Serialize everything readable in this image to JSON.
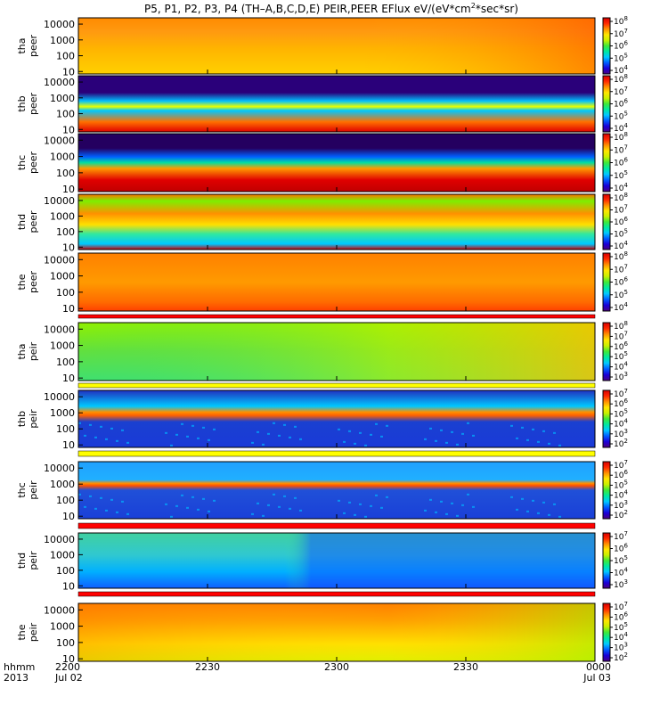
{
  "chart_data": {
    "type": "heatmap",
    "title": "P5, P1, P2, P3, P4 (TH-A,B,C,D,E) PEIR,PEER EFlux eV/(eV*cm2*sec*sr)",
    "title_main": "P5, P1, P2, P3, P4 (TH–A,B,C,D,E) PEIR,PEER EFlux eV/(eV*cm",
    "title_sup": "2",
    "title_end": "*sec*sr)",
    "x_axis": {
      "row_labels": [
        "hhmm",
        "2013"
      ],
      "ticks": [
        {
          "value": "2200",
          "sub": "Jul 02"
        },
        {
          "value": "2230",
          "sub": ""
        },
        {
          "value": "2300",
          "sub": ""
        },
        {
          "value": "2330",
          "sub": ""
        },
        {
          "value": "0000",
          "sub": "Jul 03"
        }
      ],
      "range": [
        "2013-07-02 22:00",
        "2013-07-03 00:00"
      ]
    },
    "y_axis": {
      "scale": "log",
      "unit": "eV"
    },
    "panels": [
      {
        "id": "tha-peer",
        "label_top": "tha",
        "label_bottom": "peer",
        "y_ticks": [
          "10000",
          "1000",
          "100",
          "10"
        ],
        "cb_ticks": [
          "10",
          "10",
          "10",
          "10",
          "10"
        ],
        "cb_exps": [
          "8",
          "7",
          "6",
          "5",
          "4"
        ],
        "cb_range_exp": [
          4,
          8
        ]
      },
      {
        "id": "thb-peer",
        "label_top": "thb",
        "label_bottom": "peer",
        "y_ticks": [
          "10000",
          "1000",
          "100",
          "10"
        ],
        "cb_ticks": [
          "10",
          "10",
          "10",
          "10",
          "10"
        ],
        "cb_exps": [
          "8",
          "7",
          "6",
          "5",
          "4"
        ],
        "cb_range_exp": [
          4,
          8
        ]
      },
      {
        "id": "thc-peer",
        "label_top": "thc",
        "label_bottom": "peer",
        "y_ticks": [
          "10000",
          "1000",
          "100",
          "10"
        ],
        "cb_ticks": [
          "10",
          "10",
          "10",
          "10",
          "10"
        ],
        "cb_exps": [
          "8",
          "7",
          "6",
          "5",
          "4"
        ],
        "cb_range_exp": [
          4,
          8
        ]
      },
      {
        "id": "thd-peer",
        "label_top": "thd",
        "label_bottom": "peer",
        "y_ticks": [
          "10000",
          "1000",
          "100",
          "10"
        ],
        "cb_ticks": [
          "10",
          "10",
          "10",
          "10",
          "10"
        ],
        "cb_exps": [
          "8",
          "7",
          "6",
          "5",
          "4"
        ],
        "cb_range_exp": [
          4,
          8
        ]
      },
      {
        "id": "the-peer",
        "label_top": "the",
        "label_bottom": "peer",
        "y_ticks": [
          "10000",
          "1000",
          "100",
          "10"
        ],
        "cb_ticks": [
          "10",
          "10",
          "10",
          "10",
          "10"
        ],
        "cb_exps": [
          "8",
          "7",
          "6",
          "5",
          "4"
        ],
        "cb_range_exp": [
          4,
          8
        ]
      },
      {
        "id": "tha-peir",
        "label_top": "tha",
        "label_bottom": "peir",
        "y_ticks": [
          "10000",
          "1000",
          "100",
          "10"
        ],
        "cb_ticks": [
          "10",
          "10",
          "10",
          "10",
          "10",
          "10"
        ],
        "cb_exps": [
          "8",
          "7",
          "6",
          "5",
          "4",
          "3"
        ],
        "cb_range_exp": [
          3,
          8
        ]
      },
      {
        "id": "thb-peir",
        "label_top": "thb",
        "label_bottom": "peir",
        "y_ticks": [
          "10000",
          "1000",
          "100",
          "10"
        ],
        "cb_ticks": [
          "10",
          "10",
          "10",
          "10",
          "10",
          "10"
        ],
        "cb_exps": [
          "7",
          "6",
          "5",
          "4",
          "3",
          "2"
        ],
        "cb_range_exp": [
          2,
          7
        ]
      },
      {
        "id": "thc-peir",
        "label_top": "thc",
        "label_bottom": "peir",
        "y_ticks": [
          "10000",
          "1000",
          "100",
          "10"
        ],
        "cb_ticks": [
          "10",
          "10",
          "10",
          "10",
          "10",
          "10"
        ],
        "cb_exps": [
          "7",
          "6",
          "5",
          "4",
          "3",
          "2"
        ],
        "cb_range_exp": [
          2,
          7
        ]
      },
      {
        "id": "thd-peir",
        "label_top": "thd",
        "label_bottom": "peir",
        "y_ticks": [
          "10000",
          "1000",
          "100",
          "10"
        ],
        "cb_ticks": [
          "10",
          "10",
          "10",
          "10",
          "10"
        ],
        "cb_exps": [
          "7",
          "6",
          "5",
          "4",
          "3"
        ],
        "cb_range_exp": [
          3,
          7
        ]
      },
      {
        "id": "the-peir",
        "label_top": "the",
        "label_bottom": "peir",
        "y_ticks": [
          "10000",
          "1000",
          "100",
          "10"
        ],
        "cb_ticks": [
          "10",
          "10",
          "10",
          "10",
          "10",
          "10"
        ],
        "cb_exps": [
          "7",
          "6",
          "5",
          "4",
          "3",
          "2"
        ],
        "cb_range_exp": [
          2,
          7
        ]
      }
    ],
    "colormap": [
      "#4b0082",
      "#1a00d8",
      "#005cff",
      "#00c8ff",
      "#00e8a0",
      "#3ee83a",
      "#c8f000",
      "#ffe600",
      "#ff9000",
      "#ff2800",
      "#d80000"
    ]
  }
}
